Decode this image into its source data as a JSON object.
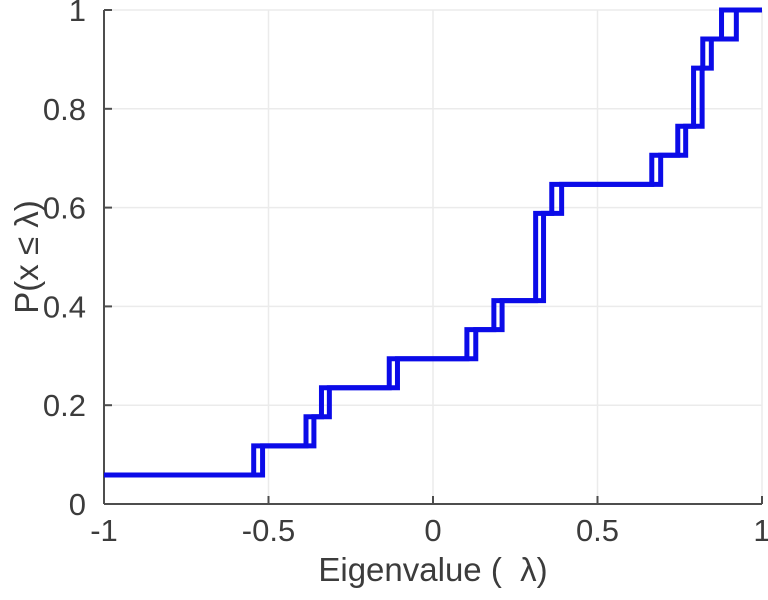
{
  "figure": {
    "background": "#ffffff"
  },
  "chart_data": {
    "type": "step",
    "subtype": "empirical-cdf",
    "title": "",
    "xlabel": "Eigenvalue (  λ)",
    "ylabel": "P(x ≤ λ)",
    "xlim": [
      -1,
      1
    ],
    "ylim": [
      0,
      1
    ],
    "grid": true,
    "legend": "none",
    "line_color": "#0b0be8",
    "axis_color": "#4d4d4d",
    "grid_color": "#ebebeb",
    "text_color": "#3c3c3c",
    "xticks": [
      {
        "v": -1,
        "label": "-1"
      },
      {
        "v": -0.5,
        "label": "-0.5"
      },
      {
        "v": 0,
        "label": "0"
      },
      {
        "v": 0.5,
        "label": "0.5"
      },
      {
        "v": 1,
        "label": "1"
      }
    ],
    "yticks": [
      {
        "v": 0,
        "label": "0"
      },
      {
        "v": 0.2,
        "label": "0.2"
      },
      {
        "v": 0.4,
        "label": "0.4"
      },
      {
        "v": 0.6,
        "label": "0.6"
      },
      {
        "v": 0.8,
        "label": "0.8"
      },
      {
        "v": 1,
        "label": "1"
      }
    ],
    "series": [
      {
        "name": "ecdf-curve-1",
        "start_level": 0.0588,
        "jumps": [
          [
            -0.545,
            0.1176
          ],
          [
            -0.386,
            0.1765
          ],
          [
            -0.339,
            0.2353
          ],
          [
            -0.133,
            0.2941
          ],
          [
            0.103,
            0.3529
          ],
          [
            0.185,
            0.4118
          ],
          [
            0.312,
            0.5882
          ],
          [
            0.361,
            0.6471
          ],
          [
            0.665,
            0.7059
          ],
          [
            0.744,
            0.7647
          ],
          [
            0.792,
            0.8824
          ],
          [
            0.82,
            0.9412
          ],
          [
            0.877,
            1.0
          ]
        ]
      },
      {
        "name": "ecdf-curve-2",
        "start_level": 0.0588,
        "jumps": [
          [
            -0.518,
            0.1176
          ],
          [
            -0.362,
            0.1765
          ],
          [
            -0.315,
            0.2353
          ],
          [
            -0.108,
            0.2941
          ],
          [
            0.13,
            0.3529
          ],
          [
            0.21,
            0.4118
          ],
          [
            0.336,
            0.5882
          ],
          [
            0.391,
            0.6471
          ],
          [
            0.692,
            0.7059
          ],
          [
            0.768,
            0.7647
          ],
          [
            0.818,
            0.8824
          ],
          [
            0.846,
            0.9412
          ],
          [
            0.922,
            1.0
          ]
        ]
      }
    ]
  }
}
